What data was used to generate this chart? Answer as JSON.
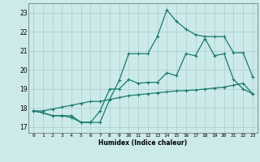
{
  "xlabel": "Humidex (Indice chaleur)",
  "bg_color": "#cceaea",
  "line_color": "#1a7a6e",
  "grid_color": "#aacccc",
  "axis_bg": "#cceaea",
  "xlim": [
    -0.5,
    23.5
  ],
  "ylim": [
    16.7,
    23.5
  ],
  "xticks": [
    0,
    1,
    2,
    3,
    4,
    5,
    6,
    7,
    8,
    9,
    10,
    11,
    12,
    13,
    14,
    15,
    16,
    17,
    18,
    19,
    20,
    21,
    22,
    23
  ],
  "yticks": [
    17,
    18,
    19,
    20,
    21,
    22,
    23
  ],
  "line1_x": [
    0,
    1,
    2,
    3,
    4,
    5,
    6,
    7,
    8,
    9,
    10,
    11,
    12,
    13,
    14,
    15,
    16,
    17,
    18,
    19,
    20,
    21,
    22,
    23
  ],
  "line1_y": [
    17.85,
    17.85,
    17.95,
    18.05,
    18.15,
    18.25,
    18.35,
    18.35,
    18.45,
    18.55,
    18.65,
    18.7,
    18.75,
    18.8,
    18.85,
    18.9,
    18.92,
    18.95,
    19.0,
    19.05,
    19.1,
    19.2,
    19.3,
    18.75
  ],
  "line2_x": [
    0,
    1,
    2,
    3,
    4,
    5,
    6,
    7,
    8,
    9,
    10,
    11,
    12,
    13,
    14,
    15,
    16,
    17,
    18,
    19,
    20,
    21,
    22,
    23
  ],
  "line2_y": [
    17.85,
    17.75,
    17.6,
    17.6,
    17.6,
    17.25,
    17.25,
    17.85,
    19.0,
    19.0,
    19.5,
    19.3,
    19.35,
    19.35,
    19.85,
    19.7,
    20.85,
    20.75,
    21.65,
    20.75,
    20.85,
    19.5,
    19.0,
    18.75
  ],
  "line3_x": [
    0,
    1,
    2,
    3,
    4,
    5,
    6,
    7,
    8,
    9,
    10,
    11,
    12,
    13,
    14,
    15,
    16,
    17,
    18,
    19,
    20,
    21,
    22,
    23
  ],
  "line3_y": [
    17.85,
    17.75,
    17.6,
    17.6,
    17.5,
    17.25,
    17.25,
    17.25,
    18.45,
    19.45,
    20.85,
    20.85,
    20.85,
    21.75,
    23.15,
    22.55,
    22.15,
    21.85,
    21.75,
    21.75,
    21.75,
    20.9,
    20.9,
    19.65
  ]
}
